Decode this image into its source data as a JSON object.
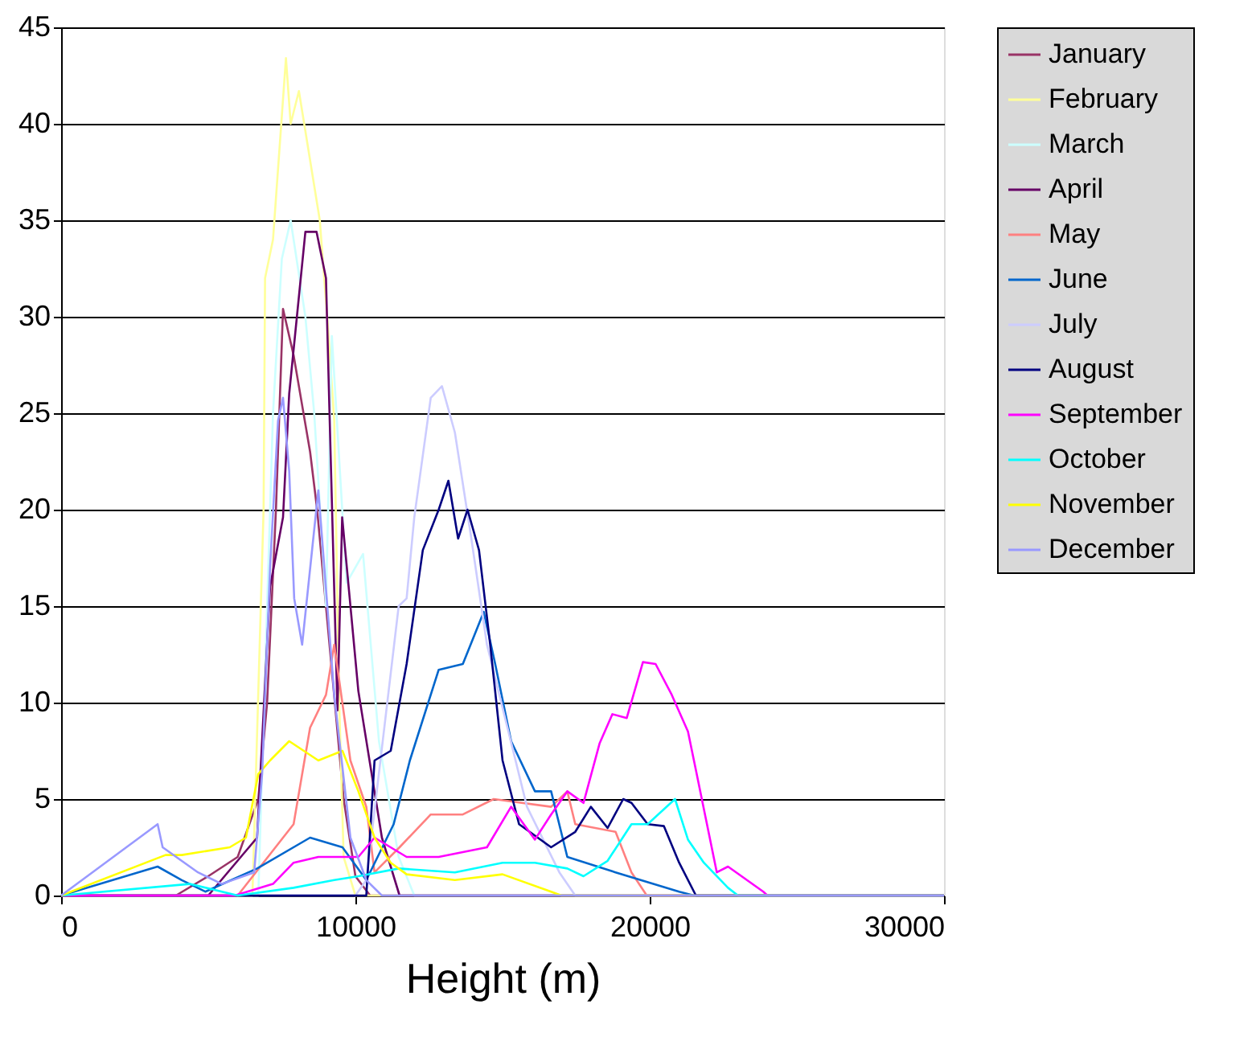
{
  "chart_data": {
    "type": "line",
    "xlabel": "Height (m)",
    "xlim": [
      0,
      30000
    ],
    "xticks": [
      0,
      10000,
      20000,
      30000
    ],
    "ylim": [
      0,
      45
    ],
    "yticks": [
      0,
      5,
      10,
      15,
      20,
      25,
      30,
      35,
      40,
      45
    ],
    "grid": "y",
    "legend": "right",
    "line_style": "solid",
    "series": [
      {
        "name": "January",
        "color": "#993366",
        "x": [
          0,
          3900,
          5000,
          6000,
          6700,
          7000,
          7300,
          7540,
          7900,
          8460,
          8700,
          9300,
          9600,
          10000,
          10500,
          30000
        ],
        "values": [
          0,
          0,
          1,
          2,
          5,
          10,
          20,
          30.4,
          28,
          23,
          20,
          10,
          5,
          1,
          0,
          0
        ]
      },
      {
        "name": "February",
        "color": "#ffff99",
        "x": [
          0,
          6500,
          6880,
          6930,
          7200,
          7640,
          7800,
          8080,
          8790,
          9060,
          9280,
          9450,
          9600,
          10000,
          30000
        ],
        "values": [
          0,
          0,
          20,
          32,
          34,
          43.4,
          40,
          41.7,
          35,
          29.6,
          24.6,
          10,
          2,
          0,
          0
        ]
      },
      {
        "name": "March",
        "color": "#ccffff",
        "x": [
          0,
          6700,
          7200,
          7500,
          7800,
          8300,
          8600,
          9000,
          9200,
          9700,
          10260,
          10800,
          11470,
          12000,
          30000
        ],
        "values": [
          0,
          0,
          25,
          33,
          35,
          30,
          25,
          15,
          29,
          16.2,
          17.7,
          8,
          2,
          0,
          0
        ]
      },
      {
        "name": "April",
        "color": "#660066",
        "x": [
          0,
          5000,
          6660,
          7100,
          7540,
          7750,
          8300,
          8680,
          9000,
          9120,
          9390,
          9550,
          10100,
          10900,
          11500,
          30000
        ],
        "values": [
          0,
          0,
          3,
          16,
          19.6,
          26,
          34.4,
          34.4,
          32,
          25,
          9.6,
          19.6,
          10.6,
          3,
          0,
          0
        ]
      },
      {
        "name": "May",
        "color": "#ff8080",
        "x": [
          0,
          6000,
          7900,
          8460,
          9000,
          9280,
          9830,
          10370,
          10650,
          11500,
          12560,
          13650,
          14700,
          16650,
          17200,
          17470,
          18840,
          19380,
          19900,
          30000
        ],
        "values": [
          0,
          0,
          3.7,
          8.7,
          10.4,
          13,
          7,
          4.6,
          1.2,
          2.5,
          4.2,
          4.2,
          5,
          4.6,
          5.4,
          3.7,
          3.3,
          1.2,
          0,
          0
        ]
      },
      {
        "name": "June",
        "color": "#0066cc",
        "x": [
          0,
          3280,
          4100,
          4900,
          6660,
          8460,
          9560,
          10370,
          11300,
          11850,
          12830,
          13650,
          14360,
          14750,
          15290,
          16100,
          16650,
          17200,
          18840,
          21000,
          21500,
          30000
        ],
        "values": [
          0,
          1.5,
          0.8,
          0.2,
          1.4,
          3,
          2.5,
          0.8,
          3.7,
          7,
          11.7,
          12,
          14.7,
          12,
          8,
          5.4,
          5.4,
          2,
          1.2,
          0.2,
          0,
          0
        ]
      },
      {
        "name": "July",
        "color": "#ccccff",
        "x": [
          0,
          10000,
          10370,
          11470,
          11740,
          12000,
          12560,
          12940,
          13380,
          13920,
          14470,
          15830,
          16930,
          17470,
          30000
        ],
        "values": [
          0,
          0,
          0.8,
          15,
          15.4,
          19.6,
          25.8,
          26.4,
          24,
          18.7,
          13,
          4.6,
          1.2,
          0,
          0
        ]
      },
      {
        "name": "August",
        "color": "#000080",
        "x": [
          0,
          10370,
          10650,
          11200,
          11740,
          12290,
          12830,
          13160,
          13490,
          13810,
          14200,
          14580,
          15000,
          15560,
          16650,
          17470,
          18000,
          18570,
          19100,
          19380,
          19930,
          20480,
          21000,
          21570,
          30000
        ],
        "values": [
          0,
          0,
          7,
          7.5,
          12,
          17.9,
          20,
          21.5,
          18.5,
          20,
          17.9,
          13,
          7,
          3.7,
          2.5,
          3.3,
          4.6,
          3.5,
          5,
          4.8,
          3.7,
          3.6,
          1.7,
          0,
          0
        ]
      },
      {
        "name": "September",
        "color": "#ff00ff",
        "x": [
          0,
          5900,
          7200,
          7900,
          8740,
          10100,
          10650,
          11740,
          12830,
          14470,
          15290,
          16100,
          16650,
          17200,
          17750,
          18300,
          18730,
          19220,
          19770,
          20200,
          20750,
          21300,
          21570,
          22280,
          22660,
          23860,
          24000,
          30000
        ],
        "values": [
          0,
          0,
          0.6,
          1.7,
          2,
          2,
          3,
          2,
          2,
          2.5,
          4.6,
          2.9,
          4.2,
          5.4,
          4.8,
          7.9,
          9.4,
          9.2,
          12.1,
          12,
          10.4,
          8.5,
          6.5,
          1.2,
          1.5,
          0.2,
          0,
          0
        ]
      },
      {
        "name": "October",
        "color": "#00ffff",
        "x": [
          0,
          4370,
          6000,
          7900,
          9280,
          10100,
          11470,
          13380,
          15000,
          16100,
          17200,
          17750,
          18570,
          19380,
          19930,
          20860,
          21300,
          21840,
          22660,
          23000,
          30000
        ],
        "values": [
          0,
          0.6,
          0,
          0.4,
          0.8,
          1,
          1.4,
          1.2,
          1.7,
          1.7,
          1.4,
          1,
          1.8,
          3.7,
          3.7,
          5,
          2.9,
          1.7,
          0.4,
          0,
          0
        ]
      },
      {
        "name": "November",
        "color": "#ffff00",
        "x": [
          0,
          3550,
          4100,
          5730,
          6280,
          6700,
          7100,
          7750,
          8740,
          9560,
          10100,
          10650,
          11200,
          11740,
          13380,
          15000,
          16650,
          17000,
          30000
        ],
        "values": [
          0,
          2.1,
          2.1,
          2.5,
          3,
          6.3,
          7,
          8,
          7,
          7.5,
          5.4,
          3,
          1.7,
          1.1,
          0.8,
          1.1,
          0.2,
          0,
          0
        ]
      },
      {
        "name": "December",
        "color": "#9999ff",
        "x": [
          0,
          3280,
          3450,
          4650,
          5460,
          6560,
          6830,
          7100,
          7370,
          7540,
          7750,
          7920,
          8190,
          8740,
          9280,
          9830,
          10370,
          10900,
          30000
        ],
        "values": [
          0,
          3.7,
          2.5,
          1.2,
          0.6,
          1.2,
          6.3,
          17,
          24.6,
          25.8,
          22,
          15.4,
          13,
          21,
          10.4,
          3,
          0.8,
          0,
          0
        ]
      }
    ]
  }
}
